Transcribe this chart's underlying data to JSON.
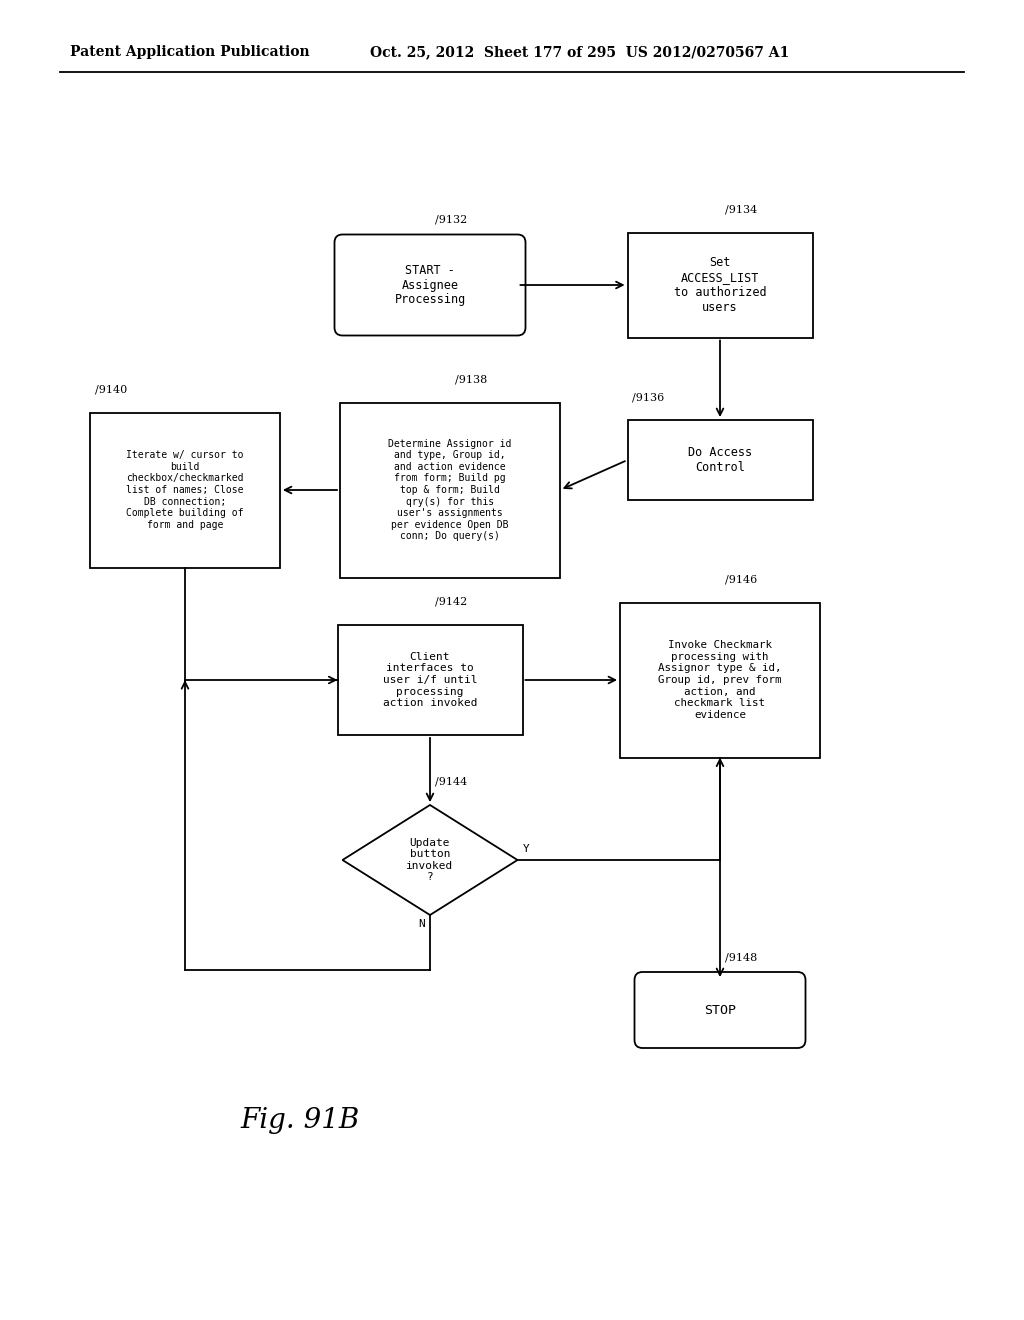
{
  "bg_color": "#ffffff",
  "header_left": "Patent Application Publication",
  "header_mid": "Oct. 25, 2012  Sheet 177 of 295  US 2012/0270567 A1",
  "fig_label": "Fig. 91B"
}
